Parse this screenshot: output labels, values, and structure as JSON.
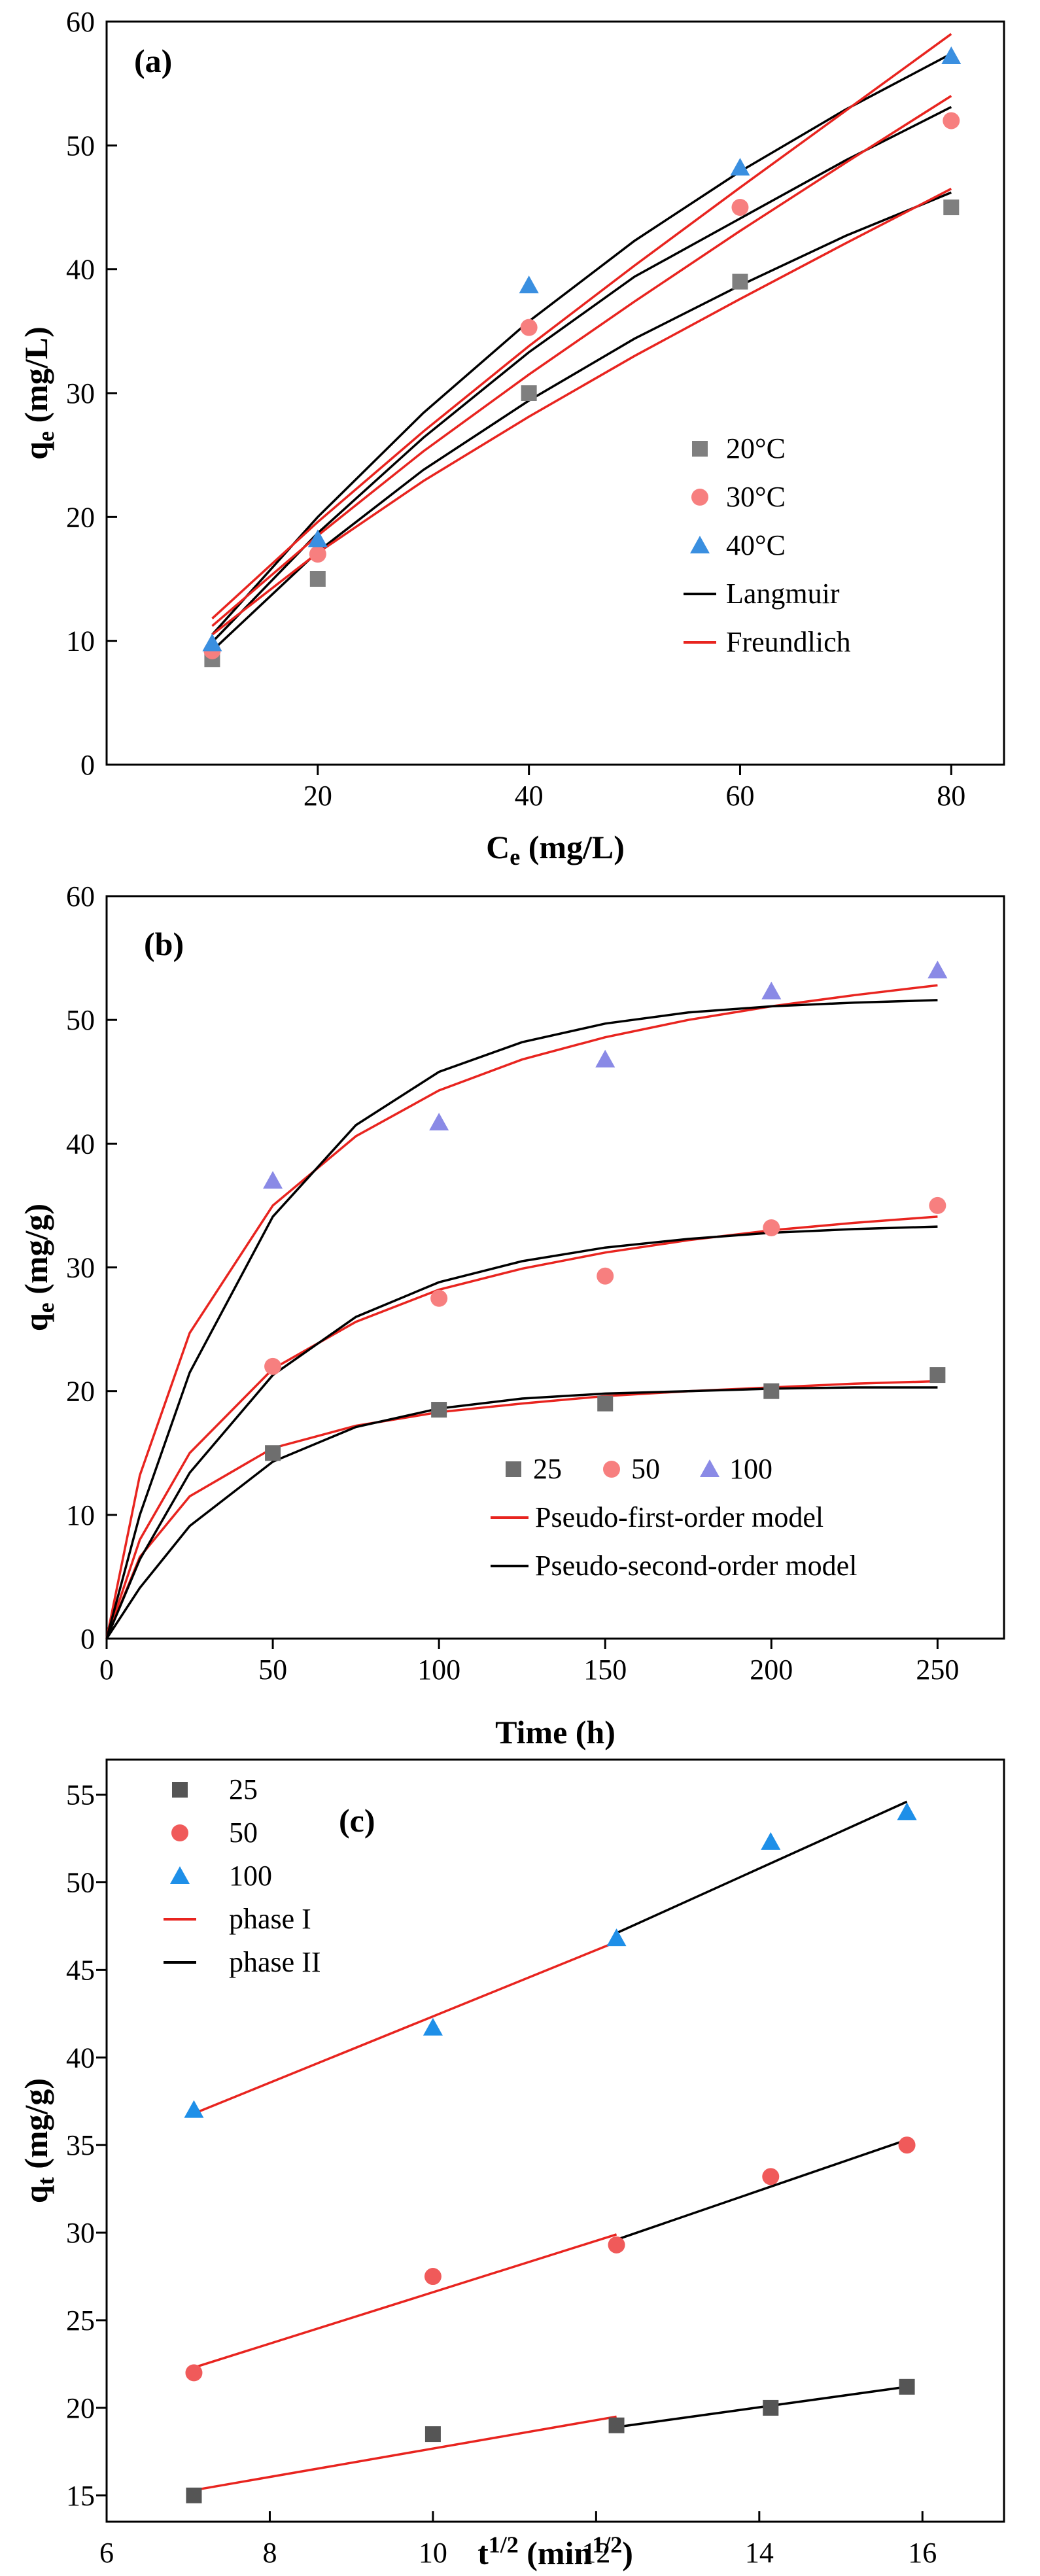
{
  "chart_data": [
    {
      "type": "scatter",
      "panel_label": "(a)",
      "xlabel": "Ce (mg/L)",
      "ylabel": "qe (mg/L)",
      "xlabel_main": "C",
      "xlabel_sub": "e",
      "xlabel_unit": " (mg/L)",
      "ylabel_main": "q",
      "ylabel_sub": "e",
      "ylabel_unit": " (mg/L)",
      "xlim": [
        0,
        85
      ],
      "ylim": [
        0,
        60
      ],
      "xticks": [
        20,
        40,
        60,
        80
      ],
      "yticks": [
        0,
        10,
        20,
        30,
        40,
        50,
        60
      ],
      "legend_position": "center-right",
      "series": [
        {
          "name": "20°C",
          "marker": "square",
          "color": "#7f7f7f",
          "x": [
            10,
            20,
            40,
            60,
            80
          ],
          "y": [
            8.5,
            15,
            30,
            39,
            45
          ]
        },
        {
          "name": "30°C",
          "marker": "circle",
          "color": "#f77f7f",
          "x": [
            10,
            20,
            40,
            60,
            80
          ],
          "y": [
            9.2,
            17,
            35.3,
            45,
            52
          ]
        },
        {
          "name": "40°C",
          "marker": "triangle",
          "color": "#3a8fe0",
          "x": [
            10,
            20,
            40,
            60,
            80
          ],
          "y": [
            9.8,
            18.2,
            38.7,
            48.2,
            57.2
          ]
        }
      ],
      "fits": [
        {
          "name": "Langmuir",
          "color": "#000000",
          "x": [
            10,
            20,
            30,
            40,
            50,
            60,
            70,
            80
          ],
          "curves": [
            [
              9.2,
              17.2,
              23.8,
              29.4,
              34.4,
              38.7,
              42.7,
              46.2
            ],
            [
              9.9,
              18.7,
              26.4,
              33.3,
              39.4,
              44.1,
              48.8,
              53.1
            ],
            [
              10.5,
              20.0,
              28.4,
              35.8,
              42.3,
              47.9,
              52.9,
              57.4
            ]
          ]
        },
        {
          "name": "Freundlich",
          "color": "#e8241f",
          "x": [
            10,
            20,
            30,
            40,
            50,
            60,
            70,
            80
          ],
          "curves": [
            [
              10.5,
              17.1,
              22.9,
              28.1,
              33.0,
              37.6,
              42.1,
              46.5
            ],
            [
              11.2,
              18.5,
              25.3,
              31.5,
              37.4,
              43.1,
              48.6,
              54.0
            ],
            [
              11.8,
              19.6,
              26.9,
              33.8,
              40.3,
              46.6,
              52.8,
              59.0
            ]
          ]
        }
      ],
      "legend": [
        "20°C",
        "30°C",
        "40°C",
        "Langmuir",
        "Freundlich"
      ]
    },
    {
      "type": "scatter",
      "panel_label": "(b)",
      "xlabel": "Time (h)",
      "ylabel": "qe (mg/g)",
      "xlabel_main": "Time (h)",
      "ylabel_main": "q",
      "ylabel_sub": "e",
      "ylabel_unit": " (mg/g)",
      "xlim": [
        0,
        270
      ],
      "ylim": [
        0,
        60
      ],
      "xticks": [
        0,
        50,
        100,
        150,
        200,
        250
      ],
      "yticks": [
        0,
        10,
        20,
        30,
        40,
        50,
        60
      ],
      "legend_position": "bottom-right",
      "series": [
        {
          "name": "25",
          "marker": "square",
          "color": "#6e6e6e",
          "x": [
            50,
            100,
            150,
            200,
            250
          ],
          "y": [
            15,
            18.5,
            19,
            20,
            21.3
          ]
        },
        {
          "name": "50",
          "marker": "circle",
          "color": "#f77f7f",
          "x": [
            50,
            100,
            150,
            200,
            250
          ],
          "y": [
            22,
            27.5,
            29.3,
            33.2,
            35
          ]
        },
        {
          "name": "100",
          "marker": "triangle",
          "color": "#8a8ae6",
          "x": [
            50,
            100,
            150,
            200,
            250
          ],
          "y": [
            37,
            41.7,
            46.8,
            52.3,
            54
          ]
        }
      ],
      "fits": [
        {
          "name": "Pseudo-first-order model",
          "color": "#e8241f",
          "x": [
            0,
            10,
            25,
            50,
            75,
            100,
            125,
            150,
            175,
            200,
            225,
            250
          ],
          "curves": [
            [
              0,
              6.6,
              11.5,
              15.4,
              17.2,
              18.3,
              19.0,
              19.6,
              20.0,
              20.3,
              20.6,
              20.8
            ],
            [
              0,
              8.0,
              15.0,
              21.8,
              25.6,
              28.2,
              29.9,
              31.2,
              32.2,
              33.0,
              33.6,
              34.1
            ],
            [
              0,
              13.2,
              24.7,
              35.0,
              40.6,
              44.3,
              46.8,
              48.6,
              50.0,
              51.1,
              52.0,
              52.8
            ]
          ]
        },
        {
          "name": "Pseudo-second-order model",
          "color": "#000000",
          "x": [
            0,
            10,
            25,
            50,
            75,
            100,
            125,
            150,
            175,
            200,
            225,
            250
          ],
          "curves": [
            [
              0,
              4.1,
              9.1,
              14.3,
              17.1,
              18.6,
              19.4,
              19.8,
              20.0,
              20.2,
              20.3,
              20.3
            ],
            [
              0,
              6.4,
              13.4,
              21.3,
              26.0,
              28.8,
              30.5,
              31.6,
              32.3,
              32.8,
              33.1,
              33.3
            ],
            [
              0,
              10.0,
              21.5,
              34.1,
              41.5,
              45.8,
              48.2,
              49.7,
              50.6,
              51.1,
              51.4,
              51.6
            ]
          ]
        }
      ],
      "legend": [
        "25",
        "50",
        "100",
        "Pseudo-first-order model",
        "Pseudo-second-order model"
      ]
    },
    {
      "type": "scatter",
      "panel_label": "(c)",
      "xlabel": "t1/2 (min1/2)",
      "ylabel": "qt (mg/g)",
      "xlabel_main": "t",
      "xlabel_sup": "1/2",
      "xlabel_unit": " (min",
      "xlabel_unit_sup": "1/2",
      "xlabel_close": ")",
      "ylabel_main": "q",
      "ylabel_sub": "t",
      "ylabel_unit": " (mg/g)",
      "xlim": [
        6,
        17
      ],
      "ylim": [
        13.5,
        57
      ],
      "xticks": [
        6,
        8,
        10,
        12,
        14,
        16
      ],
      "yticks": [
        15,
        20,
        25,
        30,
        35,
        40,
        45,
        50,
        55
      ],
      "legend_position": "top-left",
      "series": [
        {
          "name": "25",
          "marker": "square",
          "color": "#555555",
          "x": [
            7.07,
            10,
            12.25,
            14.14,
            15.81
          ],
          "y": [
            15,
            18.5,
            19,
            20,
            21.2
          ]
        },
        {
          "name": "50",
          "marker": "circle",
          "color": "#f05a5a",
          "x": [
            7.07,
            10,
            12.25,
            14.14,
            15.81
          ],
          "y": [
            22,
            27.5,
            29.3,
            33.2,
            35
          ]
        },
        {
          "name": "100",
          "marker": "triangle",
          "color": "#1e8fe8",
          "x": [
            7.07,
            10,
            12.25,
            14.14,
            15.81
          ],
          "y": [
            37,
            41.7,
            46.8,
            52.3,
            54
          ]
        }
      ],
      "fits": [
        {
          "name": "phase I",
          "color": "#e8241f",
          "segments": [
            {
              "x": [
                7.07,
                12.25
              ],
              "y": [
                15.3,
                19.5
              ]
            },
            {
              "x": [
                7.07,
                12.25
              ],
              "y": [
                22.3,
                29.9
              ]
            },
            {
              "x": [
                7.07,
                12.25
              ],
              "y": [
                36.8,
                46.6
              ]
            }
          ]
        },
        {
          "name": "phase II",
          "color": "#000000",
          "segments": [
            {
              "x": [
                12.25,
                15.81
              ],
              "y": [
                18.9,
                21.2
              ]
            },
            {
              "x": [
                12.25,
                15.81
              ],
              "y": [
                29.6,
                35.3
              ]
            },
            {
              "x": [
                12.25,
                15.81
              ],
              "y": [
                47.1,
                54.6
              ]
            }
          ]
        }
      ],
      "legend": [
        "25",
        "50",
        "100",
        "phase I",
        "phase II"
      ]
    }
  ]
}
